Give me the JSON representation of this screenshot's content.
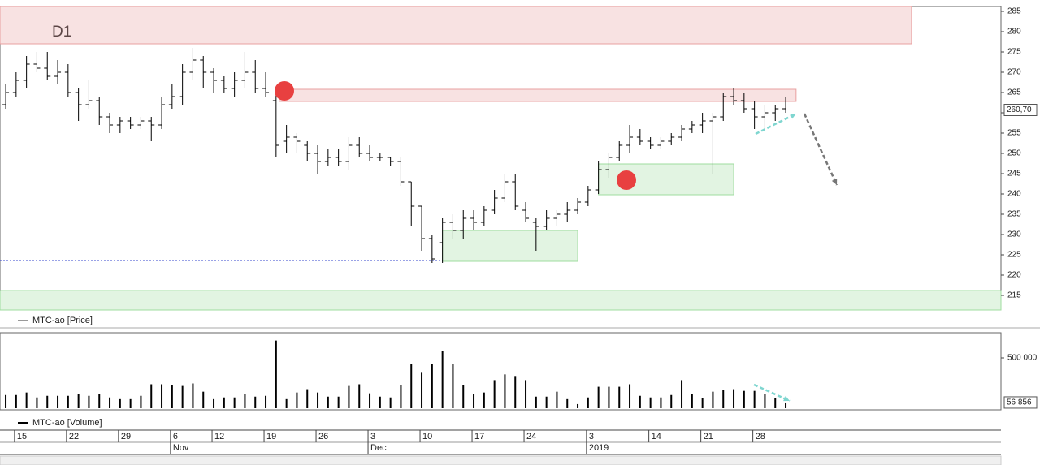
{
  "chart_data": {
    "type": "ohlc",
    "title": "D1",
    "price_label": "MTC-ao [Price]",
    "volume_label": "MTC-ao [Volume]",
    "xlim": [
      -0.55,
      95.7
    ],
    "xticks": [
      {
        "value": 1,
        "label": "15"
      },
      {
        "value": 6,
        "label": "22"
      },
      {
        "value": 11,
        "label": "29"
      },
      {
        "value": 16,
        "label": "6"
      },
      {
        "value": 20,
        "label": "12"
      },
      {
        "value": 25,
        "label": "19"
      },
      {
        "value": 30,
        "label": "26"
      },
      {
        "value": 35,
        "label": "3"
      },
      {
        "value": 40,
        "label": "10"
      },
      {
        "value": 45,
        "label": "17"
      },
      {
        "value": 50,
        "label": "24"
      },
      {
        "value": 56,
        "label": "3"
      },
      {
        "value": 62,
        "label": "14"
      },
      {
        "value": 67,
        "label": "21"
      },
      {
        "value": 72,
        "label": "28"
      }
    ],
    "month_ticks": [
      {
        "value": 16,
        "label": "Nov"
      },
      {
        "value": 35,
        "label": "Dec"
      },
      {
        "value": 56,
        "label": "2019"
      }
    ],
    "ylim": [
      211.4,
      286.2
    ],
    "yticks": [
      215,
      220,
      225,
      230,
      235,
      240,
      245,
      250,
      255,
      260,
      265,
      270,
      275,
      280,
      285
    ],
    "last_price": {
      "value": 260.7,
      "label": "260,70"
    },
    "color": "#000000",
    "open": [
      262,
      265,
      268,
      272,
      271,
      269,
      270,
      265,
      262,
      263,
      259,
      257,
      258,
      257,
      258,
      257,
      262,
      264,
      270,
      273,
      270,
      268,
      266,
      268,
      270,
      266,
      263,
      253,
      254,
      252,
      250,
      248,
      249,
      248,
      252,
      250,
      249,
      249,
      248,
      243,
      237,
      229,
      228,
      233,
      231,
      234,
      233,
      236,
      239,
      243,
      236,
      233,
      232,
      234,
      235,
      236,
      238,
      241,
      246,
      249,
      252,
      254,
      253,
      252,
      253,
      254,
      256,
      257,
      258,
      259,
      264,
      263,
      261,
      259,
      260,
      261
    ],
    "high": [
      267,
      270,
      274,
      275,
      275,
      273,
      272,
      266,
      268,
      264,
      260,
      259,
      259,
      259,
      259,
      264,
      267,
      272,
      276,
      274,
      271,
      269,
      270,
      275,
      273,
      270,
      265,
      257,
      255,
      253,
      252,
      251,
      251,
      254,
      254,
      252,
      250,
      249,
      249,
      243,
      237,
      230,
      234,
      235,
      236,
      236,
      237,
      241,
      245,
      245,
      238,
      234,
      236,
      236,
      238,
      239,
      242,
      248,
      250,
      253,
      257,
      256,
      254,
      254,
      255,
      257,
      258,
      260,
      260,
      265,
      266,
      265,
      263,
      262,
      262,
      264
    ],
    "low": [
      261,
      264,
      266,
      270,
      268,
      267,
      264,
      258,
      261,
      257,
      255,
      255,
      256,
      256,
      253,
      256,
      261,
      262,
      268,
      266,
      265,
      265,
      264,
      266,
      265,
      264,
      249,
      250,
      250,
      248,
      245,
      247,
      247,
      246,
      249,
      248,
      248,
      247,
      242,
      232,
      226,
      223,
      223,
      229,
      229,
      231,
      232,
      235,
      238,
      236,
      233,
      226,
      231,
      232,
      233,
      235,
      237,
      240,
      244,
      248,
      250,
      252,
      251,
      251,
      252,
      253,
      255,
      255,
      245,
      258,
      262,
      260,
      256,
      256,
      258,
      260
    ],
    "close": [
      265,
      268,
      272,
      271,
      269,
      270,
      265,
      262,
      263,
      259,
      257,
      258,
      257,
      258,
      257,
      262,
      264,
      270,
      273,
      270,
      268,
      266,
      268,
      270,
      266,
      265,
      252,
      254,
      253,
      250,
      248,
      249,
      248,
      252,
      250,
      249,
      249,
      248,
      243,
      237,
      229,
      224,
      233,
      231,
      234,
      233,
      236,
      239,
      243,
      237,
      234,
      232,
      234,
      235,
      236,
      238,
      241,
      246,
      249,
      252,
      254,
      253,
      252,
      253,
      254,
      256,
      257,
      258,
      259,
      264,
      263,
      261,
      259,
      260,
      261,
      260.7
    ],
    "zones": [
      {
        "low": 277,
        "high": 286.2,
        "from": -0.55,
        "to": 87.1,
        "color": "#e8a0a0"
      },
      {
        "low": 262.8,
        "high": 265.8,
        "from": 26.3,
        "to": 76,
        "color": "#e8a0a0"
      },
      {
        "low": 223.4,
        "high": 231,
        "from": 42,
        "to": 55,
        "color": "#9fdc9f"
      },
      {
        "low": 239.8,
        "high": 247.4,
        "from": 57,
        "to": 70,
        "color": "#9fdc9f"
      },
      {
        "low": 211.4,
        "high": 216.2,
        "from": -0.55,
        "to": 95.7,
        "color": "#9fdc9f"
      }
    ],
    "support_line": {
      "value": 223.6,
      "from": -0.55,
      "to": 42
    },
    "volume": {
      "values": [
        131000,
        131000,
        156000,
        107000,
        123000,
        123000,
        123000,
        139000,
        123000,
        139000,
        107000,
        90000,
        90000,
        123000,
        238000,
        238000,
        230000,
        221000,
        246000,
        164000,
        90000,
        107000,
        107000,
        139000,
        115000,
        123000,
        672000,
        90000,
        156000,
        189000,
        156000,
        115000,
        115000,
        221000,
        238000,
        148000,
        115000,
        107000,
        230000,
        443000,
        352000,
        443000,
        566000,
        443000,
        230000,
        139000,
        156000,
        279000,
        336000,
        320000,
        279000,
        115000,
        115000,
        164000,
        90000,
        41000,
        107000,
        213000,
        213000,
        213000,
        238000,
        123000,
        107000,
        107000,
        131000,
        279000,
        139000,
        98000,
        164000,
        180000,
        189000,
        172000,
        172000,
        139000,
        98000,
        56856
      ],
      "ylim": [
        0,
        750000
      ],
      "yticks": [
        {
          "value": 500000,
          "label": "500 000"
        }
      ],
      "last_label": "56 856"
    }
  }
}
